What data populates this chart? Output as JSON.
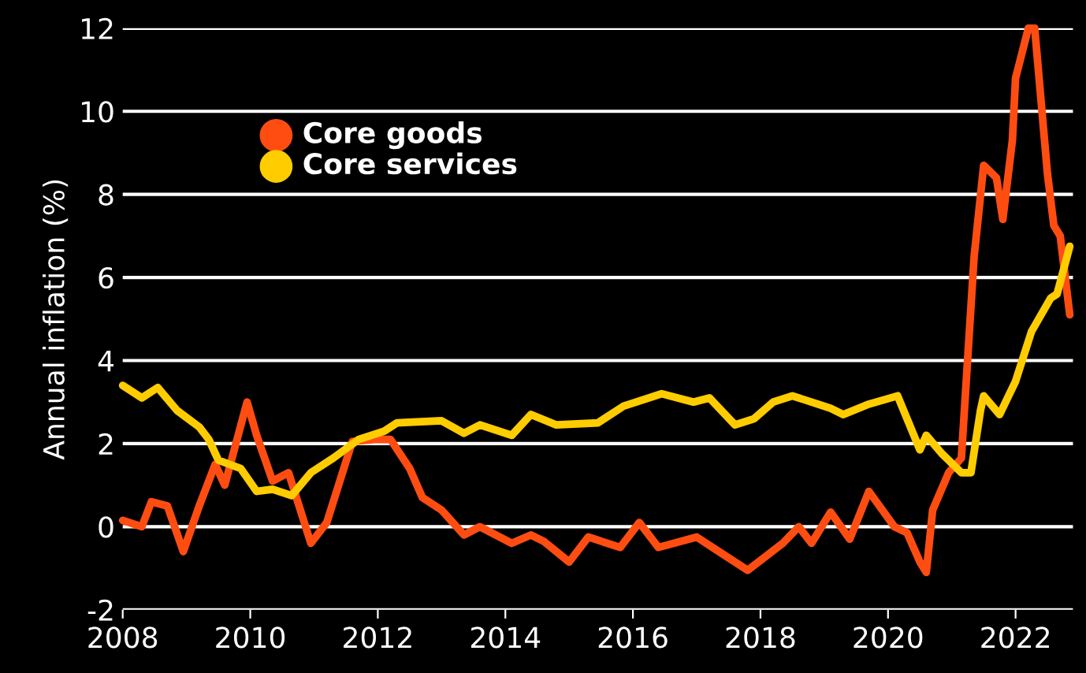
{
  "chart_data": {
    "type": "line",
    "ylabel": "Annual inflation (%)",
    "xlim": [
      2008,
      2022.9
    ],
    "ylim": [
      -2,
      12
    ],
    "xticks": [
      2008,
      2010,
      2012,
      2014,
      2016,
      2018,
      2020,
      2022
    ],
    "yticks": [
      -2,
      0,
      2,
      4,
      6,
      8,
      10,
      12
    ],
    "grid": "y",
    "legend": "top left",
    "marker": "none",
    "line_style": "solid",
    "series": [
      {
        "name": "Core goods",
        "color": "#ff4d12",
        "x": [
          2008.0,
          2008.3,
          2008.45,
          2008.7,
          2008.95,
          2009.2,
          2009.45,
          2009.6,
          2009.95,
          2010.1,
          2010.35,
          2010.6,
          2010.95,
          2011.2,
          2011.6,
          2011.95,
          2012.2,
          2012.5,
          2012.7,
          2013.0,
          2013.35,
          2013.6,
          2014.1,
          2014.4,
          2014.6,
          2015.0,
          2015.3,
          2015.8,
          2016.1,
          2016.4,
          2017.0,
          2017.3,
          2017.8,
          2018.35,
          2018.6,
          2018.8,
          2019.1,
          2019.4,
          2019.7,
          2020.1,
          2020.3,
          2020.5,
          2020.6,
          2020.7,
          2020.95,
          2021.15,
          2021.35,
          2021.5,
          2021.7,
          2021.8,
          2021.95,
          2022.0,
          2022.2,
          2022.3,
          2022.5,
          2022.6,
          2022.7,
          2022.85
        ],
        "values": [
          0.15,
          0.0,
          0.6,
          0.5,
          -0.6,
          0.5,
          1.5,
          1.0,
          3.0,
          2.2,
          1.1,
          1.3,
          -0.4,
          0.1,
          2.05,
          2.1,
          2.1,
          1.4,
          0.7,
          0.4,
          -0.2,
          0.0,
          -0.4,
          -0.2,
          -0.35,
          -0.85,
          -0.25,
          -0.5,
          0.1,
          -0.5,
          -0.25,
          -0.55,
          -1.05,
          -0.4,
          0.0,
          -0.4,
          0.35,
          -0.3,
          0.85,
          0.0,
          -0.15,
          -0.85,
          -1.1,
          0.4,
          1.3,
          1.65,
          6.5,
          8.7,
          8.4,
          7.4,
          9.3,
          10.8,
          12.0,
          12.0,
          8.5,
          7.25,
          7.0,
          5.1
        ]
      },
      {
        "name": "Core services",
        "color": "#ffcc00",
        "x": [
          2008.0,
          2008.3,
          2008.55,
          2008.85,
          2009.2,
          2009.35,
          2009.5,
          2009.85,
          2010.1,
          2010.35,
          2010.65,
          2010.95,
          2011.3,
          2011.7,
          2012.1,
          2012.3,
          2013.0,
          2013.35,
          2013.6,
          2014.1,
          2014.4,
          2014.8,
          2015.45,
          2015.85,
          2016.45,
          2016.95,
          2017.2,
          2017.6,
          2017.9,
          2018.2,
          2018.5,
          2019.1,
          2019.3,
          2019.7,
          2020.15,
          2020.5,
          2020.6,
          2020.85,
          2021.15,
          2021.3,
          2021.45,
          2021.5,
          2021.75,
          2022.0,
          2022.25,
          2022.55,
          2022.65,
          2022.85
        ],
        "values": [
          3.4,
          3.1,
          3.35,
          2.8,
          2.4,
          2.1,
          1.6,
          1.4,
          0.85,
          0.9,
          0.75,
          1.3,
          1.65,
          2.1,
          2.3,
          2.5,
          2.55,
          2.25,
          2.45,
          2.2,
          2.7,
          2.45,
          2.5,
          2.9,
          3.2,
          3.0,
          3.1,
          2.45,
          2.6,
          3.0,
          3.15,
          2.85,
          2.7,
          2.95,
          3.15,
          1.85,
          2.2,
          1.75,
          1.3,
          1.3,
          2.8,
          3.15,
          2.7,
          3.5,
          4.7,
          5.5,
          5.6,
          6.75
        ]
      }
    ]
  }
}
